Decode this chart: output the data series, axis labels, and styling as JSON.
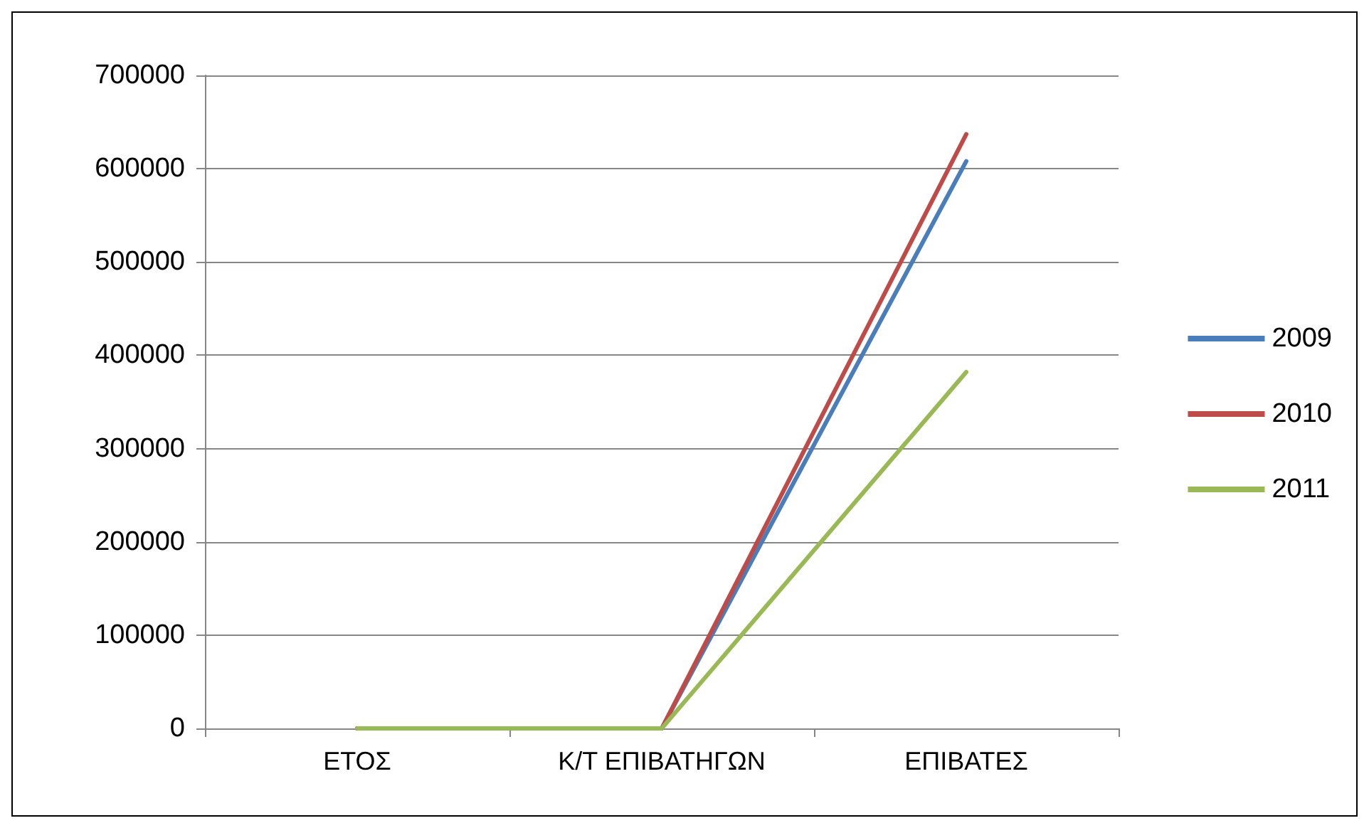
{
  "chart_data": {
    "type": "line",
    "categories": [
      "ΕΤΟΣ",
      "Κ/Τ ΕΠΙΒΑΤΗΓΩΝ",
      "ΕΠΙΒΑΤΕΣ"
    ],
    "series": [
      {
        "name": "2009",
        "color": "#4a7ebb",
        "values": [
          0,
          0,
          608000
        ]
      },
      {
        "name": "2010",
        "color": "#be4b48",
        "values": [
          0,
          0,
          637000
        ]
      },
      {
        "name": "2011",
        "color": "#98b954",
        "values": [
          0,
          0,
          382000
        ]
      }
    ],
    "ylim": [
      0,
      700000
    ],
    "yticks": [
      0,
      100000,
      200000,
      300000,
      400000,
      500000,
      600000,
      700000
    ],
    "grid": "y",
    "legend": "right",
    "marker": "none",
    "line_style": "solid"
  }
}
